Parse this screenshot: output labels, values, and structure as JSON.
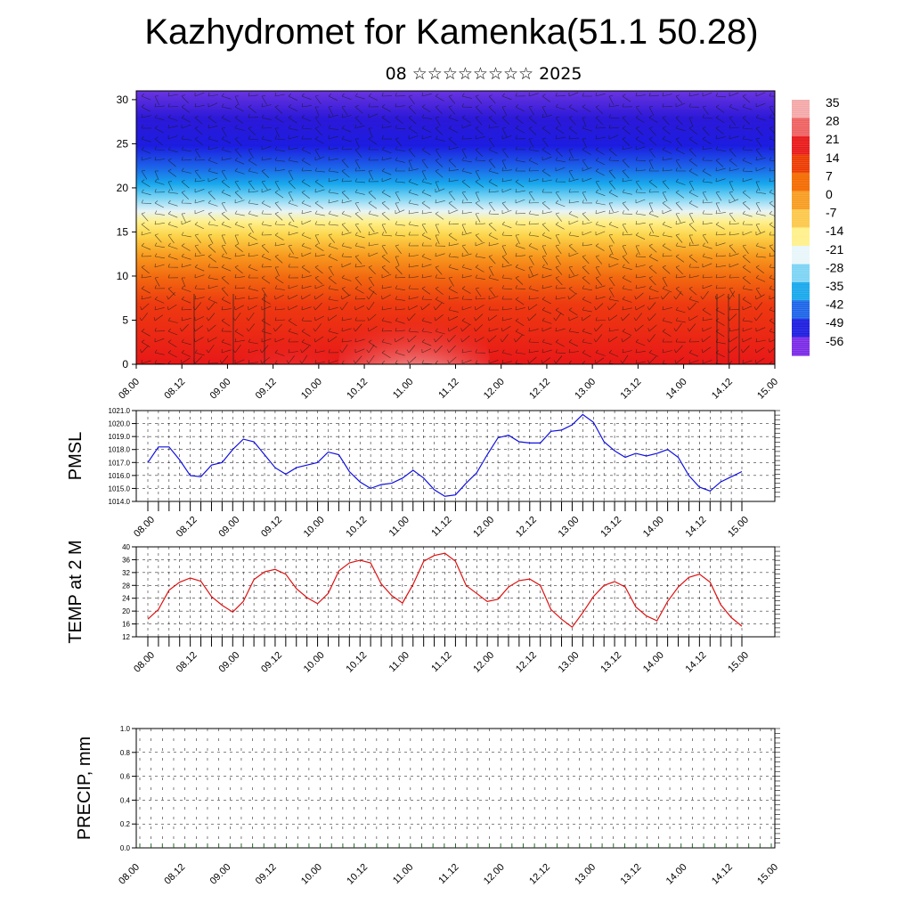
{
  "title": "Kazhydromet for Kamenka(51.1 50.28)",
  "subtitle": "08 ☆☆☆☆☆☆☆☆ 2025",
  "colors": {
    "pmsl_line": "#1010e0",
    "temp_line": "#e01010",
    "grid": "#000000"
  },
  "chart_data": [
    {
      "type": "heatmap",
      "name": "upper-air",
      "x_ticks": [
        "08.00",
        "08.12",
        "09.00",
        "09.12",
        "10.00",
        "10.12",
        "11.00",
        "11.12",
        "12.00",
        "12.12",
        "13.00",
        "13.12",
        "14.00",
        "14.12",
        "15.00"
      ],
      "y_ticks": [
        "0",
        "5",
        "10",
        "15",
        "20",
        "25",
        "30"
      ],
      "ylim": [
        0,
        31
      ],
      "colorbar_labels": [
        "35",
        "28",
        "21",
        "14",
        "7",
        "0",
        "-7",
        "-14",
        "-21",
        "-28",
        "-35",
        "-42",
        "-49",
        "-56"
      ],
      "colorbar_colors": [
        "#f4a8a8",
        "#ee6060",
        "#e81818",
        "#ec3a00",
        "#f46a00",
        "#f89c20",
        "#fcc84a",
        "#fff08a",
        "#e8f6fa",
        "#7cd4f4",
        "#18a8ec",
        "#1c64e8",
        "#1c1ce0",
        "#7a2ae6"
      ]
    },
    {
      "type": "line",
      "name": "PMSL",
      "ylabel": "PMSL",
      "ylim": [
        1014,
        1021
      ],
      "y_ticks": [
        "1014.0",
        "1015.0",
        "1016.0",
        "1017.0",
        "1018.0",
        "1019.0",
        "1020.0",
        "1021.0"
      ],
      "x_ticks": [
        "08.00",
        "08.12",
        "09.00",
        "09.12",
        "10.00",
        "10.12",
        "11.00",
        "11.12",
        "12.00",
        "12.12",
        "13.00",
        "13.12",
        "14.00",
        "14.12",
        "15.00"
      ],
      "values": [
        1017.0,
        1018.2,
        1018.2,
        1017.2,
        1016.0,
        1015.9,
        1016.8,
        1017.0,
        1018.0,
        1018.8,
        1018.6,
        1017.6,
        1016.6,
        1016.1,
        1016.6,
        1016.8,
        1017.0,
        1017.8,
        1017.6,
        1016.3,
        1015.5,
        1015.0,
        1015.3,
        1015.4,
        1015.8,
        1016.4,
        1015.8,
        1014.9,
        1014.4,
        1014.5,
        1015.4,
        1016.2,
        1017.6,
        1018.9,
        1019.1,
        1018.6,
        1018.5,
        1018.5,
        1019.4,
        1019.5,
        1019.9,
        1020.7,
        1020.1,
        1018.6,
        1017.9,
        1017.4,
        1017.7,
        1017.5,
        1017.7,
        1018.0,
        1017.4,
        1016.0,
        1015.1,
        1014.8,
        1015.5,
        1015.9,
        1016.3
      ]
    },
    {
      "type": "line",
      "name": "TEMP at 2 M",
      "ylabel": "TEMP at 2 M",
      "ylim": [
        12,
        40
      ],
      "y_ticks": [
        "12",
        "16",
        "20",
        "24",
        "28",
        "32",
        "36",
        "40"
      ],
      "x_ticks": [
        "08.00",
        "08.12",
        "09.00",
        "09.12",
        "10.00",
        "10.12",
        "11.00",
        "11.12",
        "12.00",
        "12.12",
        "13.00",
        "13.12",
        "14.00",
        "14.12",
        "15.00"
      ],
      "values": [
        17.5,
        20.5,
        26.5,
        29,
        30.3,
        29.3,
        24.5,
        21.8,
        19.7,
        23,
        29.8,
        32.2,
        33,
        31.5,
        27,
        24.2,
        22.3,
        25.5,
        32.5,
        35,
        35.8,
        35,
        28.5,
        24.8,
        22.5,
        28.3,
        35.5,
        37.3,
        38,
        35.5,
        28,
        25.5,
        23,
        23.7,
        27.5,
        29.5,
        30,
        28,
        20.5,
        17.5,
        15,
        19.5,
        24.5,
        28,
        29.2,
        27.5,
        21.3,
        18.5,
        17,
        23,
        27.5,
        30.5,
        31.5,
        29,
        22,
        18,
        15.3
      ]
    },
    {
      "type": "bar",
      "name": "PRECIP",
      "ylabel": "PRECIP, mm",
      "ylim": [
        0,
        1
      ],
      "y_ticks": [
        "0.0",
        "0.2",
        "0.4",
        "0.6",
        "0.8",
        "1.0"
      ],
      "x_ticks": [
        "08.00",
        "08.12",
        "09.00",
        "09.12",
        "10.00",
        "10.12",
        "11.00",
        "11.12",
        "12.00",
        "12.12",
        "13.00",
        "13.12",
        "14.00",
        "14.12",
        "15.00"
      ],
      "values": []
    }
  ]
}
